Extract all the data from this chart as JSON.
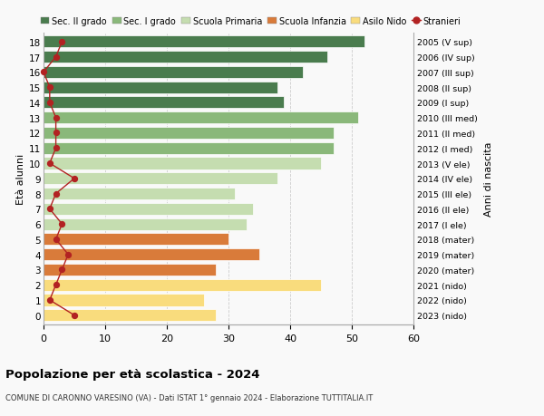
{
  "ages": [
    18,
    17,
    16,
    15,
    14,
    13,
    12,
    11,
    10,
    9,
    8,
    7,
    6,
    5,
    4,
    3,
    2,
    1,
    0
  ],
  "bar_values": [
    52,
    46,
    42,
    38,
    39,
    51,
    47,
    47,
    45,
    38,
    31,
    34,
    33,
    30,
    35,
    28,
    45,
    26,
    28
  ],
  "bar_colors": [
    "#4a7c4e",
    "#4a7c4e",
    "#4a7c4e",
    "#4a7c4e",
    "#4a7c4e",
    "#8ab87a",
    "#8ab87a",
    "#8ab87a",
    "#c5ddb0",
    "#c5ddb0",
    "#c5ddb0",
    "#c5ddb0",
    "#c5ddb0",
    "#d97b3a",
    "#d97b3a",
    "#d97b3a",
    "#f9dc7d",
    "#f9dc7d",
    "#f9dc7d"
  ],
  "stranieri_values": [
    3,
    2,
    0,
    1,
    1,
    2,
    2,
    2,
    1,
    5,
    2,
    1,
    3,
    2,
    4,
    3,
    2,
    1,
    5
  ],
  "right_labels": [
    "2005 (V sup)",
    "2006 (IV sup)",
    "2007 (III sup)",
    "2008 (II sup)",
    "2009 (I sup)",
    "2010 (III med)",
    "2011 (II med)",
    "2012 (I med)",
    "2013 (V ele)",
    "2014 (IV ele)",
    "2015 (III ele)",
    "2016 (II ele)",
    "2017 (I ele)",
    "2018 (mater)",
    "2019 (mater)",
    "2020 (mater)",
    "2021 (nido)",
    "2022 (nido)",
    "2023 (nido)"
  ],
  "ylabel": "Età alunni",
  "right_ylabel": "Anni di nascita",
  "xlim": [
    0,
    60
  ],
  "xticks": [
    0,
    10,
    20,
    30,
    40,
    50,
    60
  ],
  "title": "Popolazione per età scolastica - 2024",
  "subtitle": "COMUNE DI CARONNO VARESINO (VA) - Dati ISTAT 1° gennaio 2024 - Elaborazione TUTTITALIA.IT",
  "legend_labels": [
    "Sec. II grado",
    "Sec. I grado",
    "Scuola Primaria",
    "Scuola Infanzia",
    "Asilo Nido",
    "Stranieri"
  ],
  "legend_colors": [
    "#4a7c4e",
    "#8ab87a",
    "#c5ddb0",
    "#d97b3a",
    "#f9dc7d",
    "#b22222"
  ],
  "bg_color": "#f9f9f9",
  "grid_color": "#cccccc",
  "stranieri_color": "#b22222",
  "bar_height": 0.78
}
